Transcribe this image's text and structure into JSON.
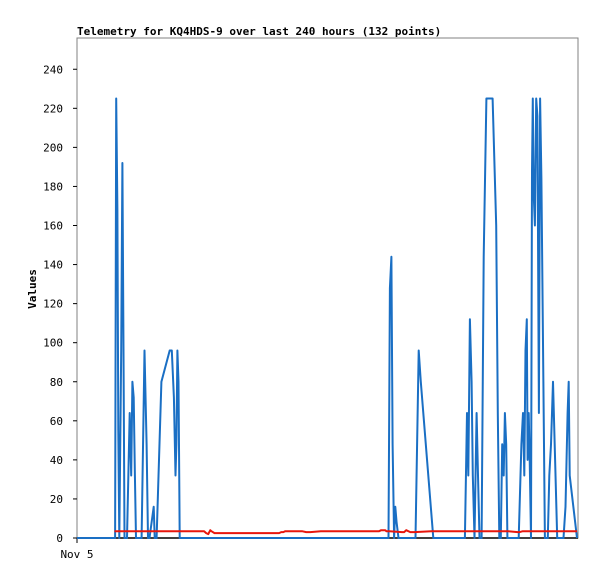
{
  "chart_data": {
    "type": "line",
    "title": "Telemetry for KQ4HDS-9 over last 240 hours (132 points)",
    "xlabel": "",
    "ylabel": "Values",
    "ylim": [
      0,
      256
    ],
    "yticks": [
      0,
      20,
      40,
      60,
      80,
      100,
      120,
      140,
      160,
      180,
      200,
      220,
      240
    ],
    "x_tick_labels": [
      {
        "x": 0,
        "label": "Nov 5"
      }
    ],
    "xlim": [
      0,
      240
    ],
    "grid": false,
    "legend": "none",
    "series": [
      {
        "color": "#1a6fc4",
        "x": [
          0,
          18.3,
          18.8,
          19.4,
          19.8,
          20.3,
          21.2,
          21.8,
          22.3,
          22.8,
          24,
          25.3,
          26,
          26.6,
          27.2,
          27.8,
          28.3,
          31,
          32.4,
          33.4,
          34.1,
          34.8,
          35.8,
          36.8,
          37.3,
          38.2,
          40.5,
          44.5,
          45.5,
          46.5,
          47.3,
          47.7,
          48.2,
          48.7,
          49.3,
          50.8,
          149.5,
          150.2,
          150.9,
          151.5,
          152.2,
          152.8,
          153.4,
          154.3,
          162.5,
          164,
          165,
          171,
          186.2,
          187.2,
          187.8,
          188.6,
          189.4,
          190,
          190.8,
          191.8,
          192.5,
          193.2,
          194.2,
          195.2,
          196.5,
          199.5,
          201.2,
          202,
          202.7,
          203.4,
          204.1,
          204.8,
          205.4,
          206,
          206.6,
          212,
          213.3,
          214.1,
          214.7,
          215.3,
          215.9,
          216.3,
          216.8,
          217.3,
          217.9,
          218.4,
          218.8,
          219.2,
          219.8,
          220.4,
          221,
          221.7,
          222.3,
          222.9,
          224.6,
          226,
          226.7,
          227.5,
          228.5,
          229.5,
          230.5,
          231,
          233.5,
          234.5,
          235.5,
          236,
          236.5,
          240
        ],
        "values": [
          0,
          0,
          225,
          168,
          55,
          0,
          96,
          192,
          96,
          0,
          0,
          64,
          32,
          80,
          72,
          32,
          0,
          0,
          96,
          48,
          0,
          0,
          8,
          16,
          0,
          0,
          80,
          96,
          96,
          72,
          32,
          48,
          96,
          80,
          0,
          0,
          0,
          128,
          144,
          48,
          0,
          16,
          8,
          0,
          0,
          96,
          80,
          0,
          0,
          64,
          32,
          112,
          80,
          32,
          0,
          64,
          32,
          0,
          0,
          144,
          225,
          225,
          160,
          64,
          0,
          0,
          48,
          32,
          64,
          48,
          0,
          0,
          48,
          64,
          32,
          96,
          112,
          40,
          64,
          40,
          0,
          188,
          225,
          176,
          160,
          225,
          216,
          64,
          225,
          184,
          0,
          0,
          32,
          48,
          80,
          40,
          0,
          0,
          0,
          16,
          64,
          80,
          32,
          0
        ]
      },
      {
        "color": "#e8160c",
        "x": [
          18,
          61,
          62,
          63,
          63.5,
          64,
          64.5,
          66,
          67.5,
          97,
          98,
          99,
          100,
          108,
          110,
          112,
          117,
          124,
          145,
          146,
          147,
          148,
          148.5,
          150,
          156,
          157,
          158,
          160,
          162,
          170,
          177,
          184,
          190,
          197,
          207,
          211.5,
          212.5,
          214,
          240
        ],
        "values": [
          3.5,
          3.5,
          2.5,
          2,
          3,
          4,
          3.5,
          2.5,
          2.5,
          2.5,
          3,
          3,
          3.5,
          3.5,
          3,
          3,
          3.5,
          3.5,
          3.5,
          4,
          4,
          4,
          3.5,
          3.5,
          3,
          3,
          4,
          3,
          3,
          3.5,
          3.5,
          3.5,
          3.5,
          3.5,
          3.5,
          3,
          3,
          3.5,
          3.5
        ]
      }
    ]
  }
}
